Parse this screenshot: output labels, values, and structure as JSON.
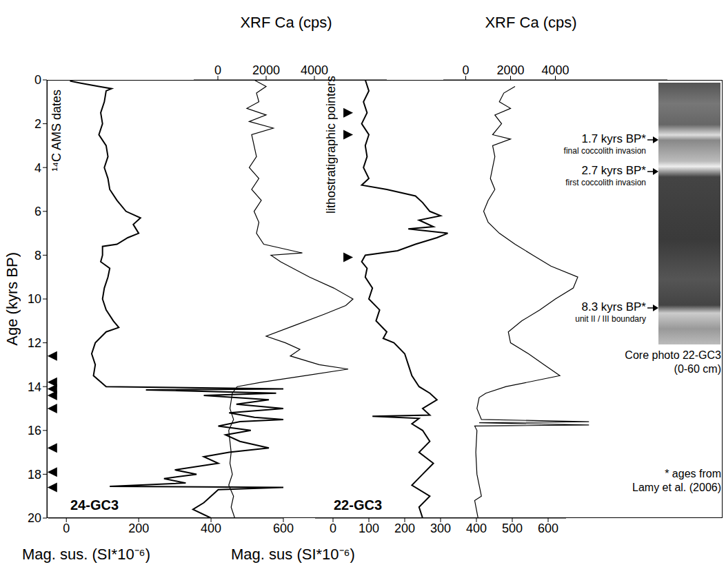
{
  "chart_data": {
    "type": "line",
    "ylabel": "Age (kyrs BP)",
    "ylim": [
      0,
      20
    ],
    "yticks": [
      0,
      2,
      4,
      6,
      8,
      10,
      12,
      14,
      16,
      18,
      20
    ],
    "panels": [
      {
        "xlabel": "Mag. sus. (SI*10⁻⁶)",
        "xlim": [
          -50,
          600
        ],
        "xticks": [
          0,
          200,
          400,
          600
        ],
        "series": [
          {
            "name": "24-GC3",
            "color": "#000000",
            "y": [
              0.05,
              0.15,
              0.3,
              0.4,
              0.5,
              1,
              1.5,
              2,
              2.5,
              3,
              3.5,
              4,
              4.5,
              5,
              5.5,
              6,
              6.3,
              6.6,
              7,
              7.2,
              7.5,
              7.6,
              8,
              8.3,
              8.6,
              9,
              9.5,
              10,
              10.5,
              11,
              11.3,
              11.5,
              12,
              12.5,
              13,
              13.5,
              14,
              14.1,
              14.15,
              14.3,
              14.4,
              14.6,
              14.8,
              15,
              15.2,
              15.4,
              15.5,
              15.6,
              15.8,
              16,
              16.2,
              16.5,
              16.8,
              17,
              17.2,
              17.5,
              17.8,
              18,
              18.2,
              18.4,
              18.55,
              18.6,
              18.7,
              19,
              19.3,
              19.6,
              20
            ],
            "values": [
              10,
              40,
              90,
              125,
              110,
              105,
              95,
              100,
              90,
              110,
              115,
              105,
              115,
              120,
              140,
              165,
              205,
              185,
              200,
              170,
              140,
              100,
              100,
              95,
              120,
              115,
              105,
              100,
              110,
              130,
              145,
              110,
              80,
              70,
              80,
              75,
              110,
              600,
              220,
              580,
              380,
              560,
              470,
              600,
              450,
              520,
              600,
              480,
              420,
              510,
              440,
              480,
              560,
              450,
              380,
              420,
              300,
              360,
              270,
              330,
              120,
              600,
              420,
              400,
              380,
              350,
              400
            ]
          }
        ]
      },
      {
        "xlabel": "XRF Ca (cps)",
        "xlim": [
          -1000,
          7000
        ],
        "xticks": [
          0,
          2000,
          4000
        ],
        "series": [
          {
            "color": "#000000",
            "y": [
              0,
              0.3,
              0.6,
              1,
              1.3,
              1.6,
              1.9,
              2.2,
              2.5,
              3,
              3.5,
              4,
              4.5,
              5,
              5.5,
              6,
              6.5,
              7,
              7.5,
              7.9,
              8,
              8.3,
              9,
              9.5,
              10,
              10.3,
              10.7,
              11.2,
              11.7,
              12,
              12.3,
              12.6,
              13,
              13.2,
              13.5,
              13.8,
              14,
              14.3,
              15,
              15.5,
              16,
              17,
              17.5,
              18,
              18.5,
              19,
              19.5,
              20
            ],
            "values": [
              1500,
              2000,
              1600,
              1700,
              1200,
              2000,
              1300,
              2300,
              1400,
              1500,
              1600,
              1300,
              1700,
              1400,
              1800,
              1500,
              1700,
              1600,
              1900,
              3500,
              2200,
              2600,
              3800,
              4800,
              5600,
              5300,
              4400,
              3200,
              2000,
              2800,
              3400,
              3000,
              4200,
              5400,
              3600,
              1800,
              800,
              600,
              500,
              650,
              450,
              550,
              500,
              600,
              450,
              650,
              550,
              700
            ]
          }
        ]
      },
      {
        "xlabel": "Mag. sus (SI*10⁻⁶)",
        "xlim": [
          -50,
          650
        ],
        "xticks": [
          0,
          100,
          200,
          300,
          400,
          500,
          600
        ],
        "series": [
          {
            "name": "22-GC3",
            "color": "#000000",
            "y": [
              0,
              0.5,
              1,
              1.5,
              2,
              2.5,
              3,
              3.5,
              4,
              4.5,
              4.8,
              5,
              5.3,
              5.6,
              6,
              6.2,
              6.4,
              6.7,
              6.8,
              7,
              7.2,
              7.5,
              7.8,
              8,
              8.3,
              8.6,
              9,
              9.5,
              10,
              10.5,
              11,
              11.5,
              11.8,
              12,
              12.5,
              13,
              13.5,
              14,
              14.3,
              14.6,
              15,
              15.3,
              15.35,
              15.45,
              15.7,
              16,
              16.5,
              17,
              17.5,
              18,
              18.5,
              19,
              19.5,
              20
            ],
            "values": [
              90,
              100,
              85,
              95,
              80,
              100,
              90,
              95,
              85,
              100,
              80,
              150,
              230,
              250,
              270,
              300,
              240,
              280,
              210,
              320,
              290,
              230,
              180,
              90,
              80,
              95,
              90,
              110,
              100,
              130,
              120,
              150,
              140,
              170,
              200,
              210,
              220,
              240,
              270,
              290,
              250,
              270,
              110,
              240,
              220,
              250,
              270,
              240,
              280,
              250,
              220,
              270,
              240,
              250
            ]
          }
        ]
      },
      {
        "xlabel": "XRF Ca (cps)",
        "xlim": [
          -1000,
          9000
        ],
        "xticks": [
          0,
          2000,
          4000
        ],
        "series": [
          {
            "color": "#000000",
            "y": [
              0.3,
              0.6,
              1,
              1.3,
              1.6,
              2,
              2.5,
              2.7,
              3,
              3.5,
              4,
              4.5,
              5,
              5.5,
              6,
              6.5,
              7,
              7.5,
              8,
              8.5,
              9,
              9.5,
              10,
              10.5,
              11,
              11.5,
              12,
              12.5,
              13,
              13.5,
              14,
              14.3,
              14.5,
              15,
              15.5,
              15.6,
              15.65,
              15.75,
              15.8,
              16,
              17,
              18,
              19,
              19.2,
              20
            ],
            "values": [
              2200,
              1700,
              1500,
              2000,
              1300,
              1600,
              1200,
              2000,
              1200,
              1300,
              1200,
              1100,
              1300,
              1000,
              800,
              1000,
              1500,
              2200,
              3000,
              3800,
              5000,
              4800,
              4000,
              3300,
              2500,
              1900,
              2000,
              2800,
              3500,
              4200,
              1800,
              900,
              600,
              500,
              700,
              5500,
              600,
              5500,
              400,
              500,
              450,
              500,
              700,
              400,
              550
            ]
          }
        ]
      }
    ],
    "markers": [
      {
        "label": "¹⁴C AMS dates",
        "y": [
          12.6,
          13.8,
          14.1,
          14.4,
          15.0,
          16.8,
          17.9,
          18.6
        ]
      },
      {
        "label": "lithostratigraphic pointers",
        "y": [
          1.5,
          2.5,
          8.1
        ]
      }
    ],
    "annotations": [
      {
        "text": "1.7 kyrs BP*",
        "subtext": "final coccolith invasion"
      },
      {
        "text": "2.7 kyrs BP*",
        "subtext": "first coccolith invasion"
      },
      {
        "text": "8.3 kyrs BP*",
        "subtext": "unit II / III boundary"
      }
    ],
    "caption": [
      "Core photo 22-GC3",
      "(0-60 cm)"
    ],
    "footnote": [
      "* ages from",
      "Lamy et al. (2006)"
    ]
  }
}
